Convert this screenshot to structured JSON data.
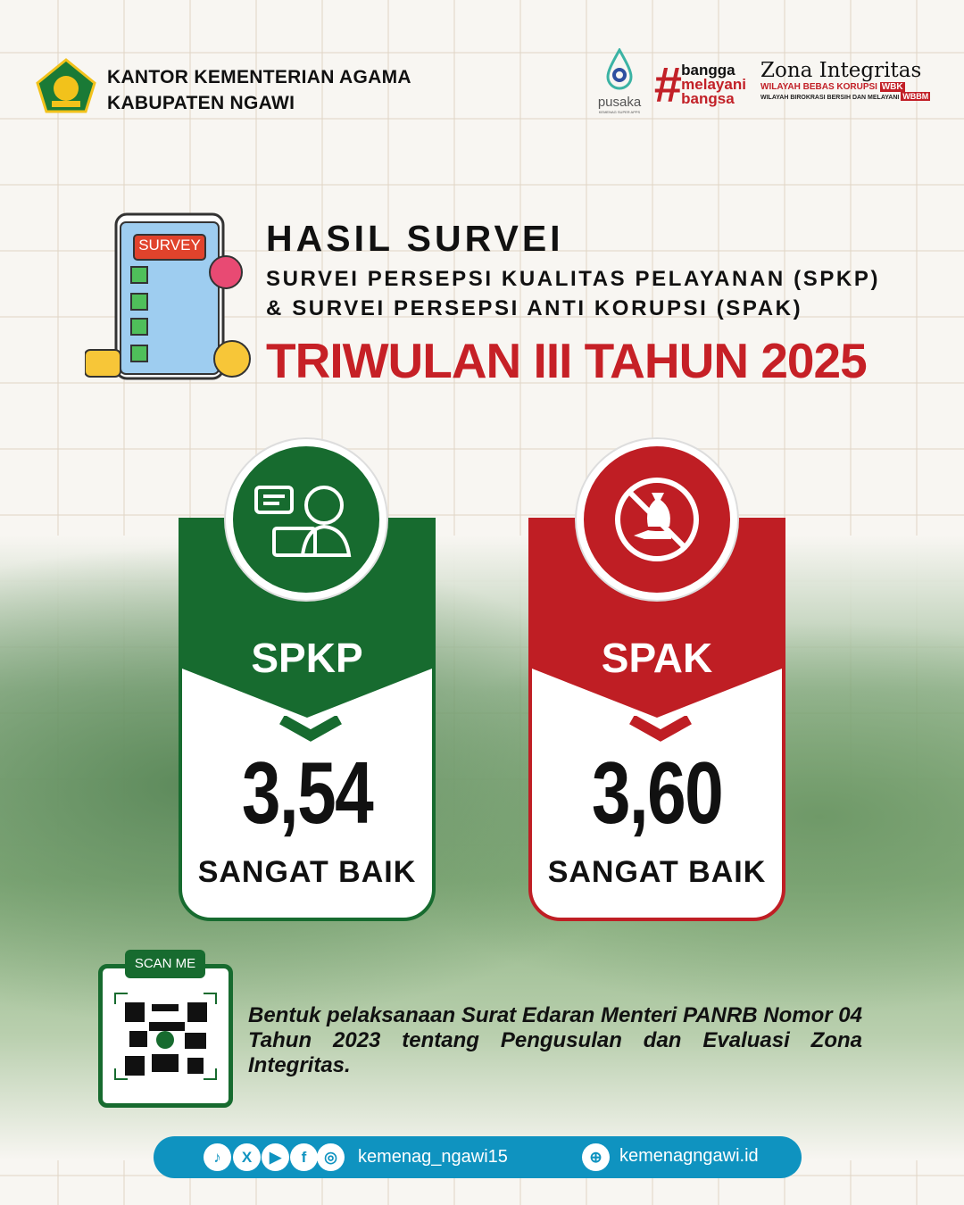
{
  "header": {
    "org_line1": "KANTOR KEMENTERIAN AGAMA",
    "org_line2": "KABUPATEN NGAWI",
    "logos": {
      "pusaka": "pusaka",
      "pusaka_sub": "KEMENAG SUPER APPS",
      "bangga": [
        "bangga",
        "melayani",
        "bangsa"
      ],
      "zi_title": "Zona Integritas",
      "zi_wbk": "WILAYAH BEBAS KORUPSI",
      "zi_wbk_badge": "WBK",
      "zi_wbbm": "WILAYAH BIROKRASI BERSIH DAN MELAYANI",
      "zi_wbbm_badge": "WBBM"
    }
  },
  "title": {
    "main": "HASIL SURVEI",
    "line1": "SURVEI PERSEPSI KUALITAS PELAYANAN (SPKP)",
    "line2": "& SURVEI PERSEPSI ANTI KORUPSI (SPAK)",
    "period": "TRIWULAN III TAHUN 2025",
    "illustration_label": "SURVEY"
  },
  "cards": [
    {
      "label": "SPKP",
      "value": "3,54",
      "category": "SANGAT BAIK",
      "color": "#176b2f",
      "icon": "customer-service-icon"
    },
    {
      "label": "SPAK",
      "value": "3,60",
      "category": "SANGAT BAIK",
      "color": "#bf1e24",
      "icon": "no-bribery-icon"
    }
  ],
  "qr": {
    "label": "SCAN ME"
  },
  "note": "Bentuk pelaksanaan Surat Edaran Menteri PANRB Nomor 04 Tahun 2023 tentang Pengusulan dan Evaluasi Zona Integritas.",
  "footer": {
    "social_handle": "kemenag_ngawi15",
    "website": "kemenagngawi.id",
    "icons": [
      "tiktok-icon",
      "x-icon",
      "youtube-icon",
      "facebook-icon",
      "instagram-icon",
      "globe-icon"
    ]
  }
}
